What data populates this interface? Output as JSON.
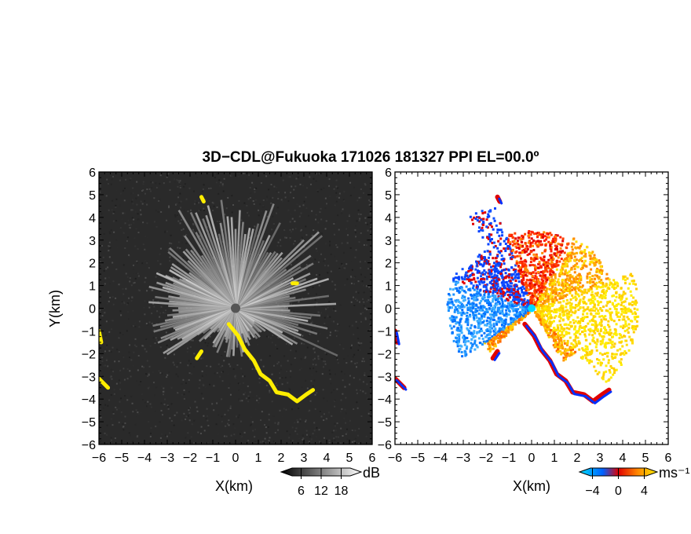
{
  "title": "3D−CDL@Fukuoka 171026 181327 PPI EL=00.0º",
  "chart_data": [
    {
      "type": "heatmap",
      "panel": "reflectivity",
      "xlabel": "X(km)",
      "ylabel": "Y(km)",
      "xlim": [
        -6,
        6
      ],
      "ylim": [
        -6,
        6
      ],
      "xticks": [
        "−6",
        "−5",
        "−4",
        "−3",
        "−2",
        "−1",
        "0",
        "1",
        "2",
        "3",
        "4",
        "5",
        "6"
      ],
      "yticks": [
        "−6",
        "−5",
        "−4",
        "−3",
        "−2",
        "−1",
        "0",
        "1",
        "2",
        "3",
        "4",
        "5",
        "6"
      ],
      "colorbar": {
        "unit": "dB",
        "ticks": [
          "6",
          "12",
          "18"
        ],
        "range": [
          0,
          24
        ],
        "colors": [
          "#000000",
          "#ffffff"
        ]
      },
      "overlay_color": "#ffee00"
    },
    {
      "type": "heatmap",
      "panel": "doppler-velocity",
      "xlabel": "X(km)",
      "xlim": [
        -6,
        6
      ],
      "ylim": [
        -6,
        6
      ],
      "xticks": [
        "−6",
        "−5",
        "−4",
        "−3",
        "−2",
        "−1",
        "0",
        "1",
        "2",
        "3",
        "4",
        "5",
        "6"
      ],
      "yticks": [
        "−6",
        "−5",
        "−4",
        "−3",
        "−2",
        "−1",
        "0",
        "1",
        "2",
        "3",
        "4",
        "5",
        "6"
      ],
      "colorbar": {
        "unit": "ms⁻¹",
        "ticks": [
          "−4",
          "0",
          "4"
        ],
        "range": [
          -6,
          6
        ],
        "colors": [
          "#00e0ff",
          "#0060ff",
          "#e00000",
          "#ff8800",
          "#ffee00"
        ]
      }
    }
  ]
}
